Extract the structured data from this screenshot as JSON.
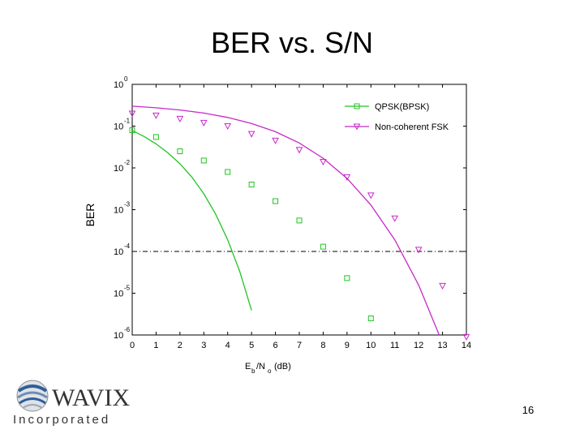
{
  "slide": {
    "title": "BER vs. S/N",
    "page_number": "16"
  },
  "logo": {
    "brand": "WAVIX",
    "tagline": "Incorporated",
    "colors": {
      "text": "#333333",
      "blue": "#2d5f9a",
      "grey": "#8a8f96"
    }
  },
  "chart_data": {
    "type": "line",
    "title": "",
    "xlabel_base": "E",
    "xlabel_sub1": "b",
    "xlabel_mid": "/N",
    "xlabel_sub2": "o",
    "xlabel_unit": "(dB)",
    "ylabel": "BER",
    "xlim": [
      0,
      14
    ],
    "ylim": [
      1e-06,
      1
    ],
    "yscale": "log",
    "grid": false,
    "legend_position": "top-right",
    "x_ticks": [
      0,
      1,
      2,
      3,
      4,
      5,
      6,
      7,
      8,
      9,
      10,
      11,
      12,
      13,
      14
    ],
    "y_ticks": [
      {
        "base": "10",
        "exp": "0"
      },
      {
        "base": "10",
        "exp": "-1"
      },
      {
        "base": "10",
        "exp": "-2"
      },
      {
        "base": "10",
        "exp": "-3"
      },
      {
        "base": "10",
        "exp": "-4"
      },
      {
        "base": "10",
        "exp": "-5"
      },
      {
        "base": "10",
        "exp": "-6"
      }
    ],
    "reference_line": {
      "y": 0.0001,
      "style": "dash-dot"
    },
    "series": [
      {
        "name": "QPSK(BPSK)",
        "color": "#22c422",
        "marker": "square",
        "points_x": [
          0,
          1,
          2,
          3,
          4,
          5,
          6,
          7,
          8,
          9,
          10
        ],
        "points_y": [
          0.08,
          0.055,
          0.025,
          0.015,
          0.008,
          0.004,
          0.0016,
          0.00055,
          0.00013,
          2.3e-05,
          2.5e-06
        ],
        "curve_x": [
          0,
          0.5,
          1,
          1.5,
          2,
          2.5,
          3,
          3.5,
          4,
          4.5,
          5,
          5.5,
          6,
          6.5,
          7,
          7.5,
          8,
          8.5,
          9,
          9.5,
          10
        ],
        "curve_y": [
          0.0786,
          0.0563,
          0.0375,
          0.0229,
          0.0125,
          0.006,
          0.0024,
          0.00077,
          0.00019,
          3.4e-05,
          3.9e-06,
          2.5e-07,
          9e-09,
          2e-10,
          3e-12,
          0.0,
          0,
          0,
          0,
          0,
          0
        ]
      },
      {
        "name": "Non-coherent FSK",
        "color": "#c828c8",
        "marker": "triangle-down",
        "points_x": [
          0,
          1,
          2,
          3,
          4,
          5,
          6,
          7,
          8,
          9,
          10,
          11,
          12,
          13,
          14
        ],
        "points_y": [
          0.2,
          0.18,
          0.15,
          0.12,
          0.1,
          0.065,
          0.045,
          0.027,
          0.014,
          0.006,
          0.0022,
          0.00062,
          0.00011,
          1.5e-05,
          9e-07
        ],
        "curve_x": [
          0,
          1,
          2,
          3,
          4,
          5,
          6,
          7,
          8,
          9,
          10,
          11,
          12,
          13,
          14
        ],
        "curve_y": [
          0.3,
          0.275,
          0.243,
          0.205,
          0.161,
          0.1157,
          0.0734,
          0.0394,
          0.017,
          0.0056,
          0.00129,
          0.00019,
          1.57e-05,
          6.4e-07,
          1.14e-08
        ]
      }
    ]
  }
}
